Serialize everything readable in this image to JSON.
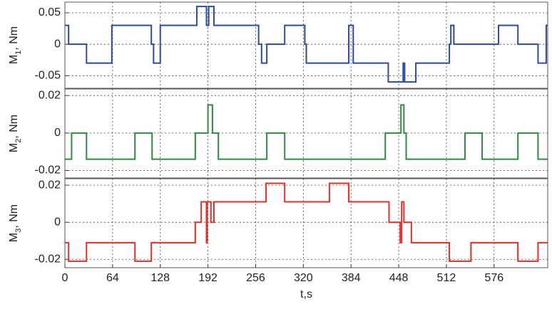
{
  "chart_data": [
    {
      "type": "line",
      "ylabel": [
        "M",
        "1",
        ", Nm"
      ],
      "color": "#2b4c9c",
      "x": [
        0,
        5,
        5,
        29,
        29,
        63,
        63,
        116,
        116,
        119,
        119,
        128,
        128,
        177,
        177,
        190,
        190,
        193,
        193,
        200,
        200,
        260,
        260,
        264,
        264,
        271,
        271,
        295,
        295,
        322,
        322,
        324,
        324,
        381,
        381,
        387,
        387,
        434,
        434,
        454,
        454,
        456,
        456,
        471,
        471,
        516,
        516,
        518,
        518,
        522,
        522,
        582,
        582,
        608,
        608,
        635,
        635,
        646,
        646,
        648
      ],
      "values": [
        0.03,
        0.03,
        0,
        0,
        -0.03,
        -0.03,
        0.03,
        0.03,
        0,
        0,
        -0.03,
        -0.03,
        0.03,
        0.03,
        0.06,
        0.06,
        0.03,
        0.03,
        0.06,
        0.06,
        0.03,
        0.03,
        0,
        0,
        -0.03,
        -0.03,
        0,
        0,
        0.03,
        0.03,
        0,
        0,
        -0.03,
        -0.03,
        0.03,
        0.03,
        -0.03,
        -0.03,
        -0.06,
        -0.06,
        -0.03,
        -0.03,
        -0.06,
        -0.06,
        -0.03,
        -0.03,
        0,
        0,
        0.03,
        0.03,
        0,
        0,
        0.03,
        0.03,
        0,
        0,
        -0.03,
        -0.03,
        0.03,
        0.03
      ],
      "xlim": [
        0,
        648
      ],
      "ylim": [
        -0.07,
        0.067
      ],
      "yticks": [
        0.05,
        0,
        -0.05
      ],
      "grid": true
    },
    {
      "type": "line",
      "ylabel": [
        "M",
        "2",
        ", Nm"
      ],
      "color": "#2e8b3e",
      "x": [
        0,
        9,
        9,
        29,
        29,
        94,
        94,
        117,
        117,
        175,
        175,
        192,
        192,
        198,
        198,
        206,
        206,
        271,
        271,
        295,
        295,
        430,
        430,
        451,
        451,
        455,
        455,
        458,
        458,
        537,
        537,
        560,
        560,
        608,
        608,
        635,
        635,
        648
      ],
      "values": [
        -0.014,
        -0.014,
        0,
        0,
        -0.014,
        -0.014,
        0,
        0,
        -0.014,
        -0.014,
        0,
        0,
        0.015,
        0.015,
        0,
        0,
        -0.014,
        -0.014,
        0,
        0,
        -0.014,
        -0.014,
        0,
        0,
        0.015,
        0.015,
        0,
        0,
        -0.014,
        -0.014,
        0,
        0,
        -0.014,
        -0.014,
        0,
        0,
        -0.014,
        -0.014
      ],
      "xlim": [
        0,
        648
      ],
      "ylim": [
        -0.024,
        0.0235
      ],
      "yticks": [
        0.02,
        0,
        -0.02
      ],
      "grid": true
    },
    {
      "type": "line",
      "ylabel": [
        "M",
        "3",
        ", Nm"
      ],
      "color": "#e0302a",
      "xlabel": "t,s",
      "x": [
        0,
        5,
        5,
        29,
        29,
        94,
        94,
        116,
        116,
        175,
        175,
        183,
        183,
        190,
        190,
        191,
        191,
        196,
        196,
        200,
        200,
        270,
        270,
        295,
        295,
        355,
        355,
        381,
        381,
        435,
        435,
        450,
        450,
        452,
        452,
        455,
        455,
        465,
        465,
        516,
        516,
        545,
        545,
        608,
        608,
        635,
        635,
        648
      ],
      "values": [
        -0.011,
        -0.011,
        -0.021,
        -0.021,
        -0.011,
        -0.011,
        -0.021,
        -0.021,
        -0.011,
        -0.011,
        0,
        0,
        0.011,
        0.011,
        -0.011,
        -0.011,
        0.011,
        0.011,
        0,
        0,
        0.011,
        0.011,
        0.021,
        0.021,
        0.011,
        0.011,
        0.021,
        0.021,
        0.011,
        0.011,
        0,
        0,
        -0.011,
        -0.011,
        0.011,
        0.011,
        0,
        0,
        -0.011,
        -0.011,
        -0.021,
        -0.021,
        -0.011,
        -0.011,
        -0.021,
        -0.021,
        -0.011,
        -0.011
      ],
      "xlim": [
        0,
        648
      ],
      "ylim": [
        -0.0245,
        0.0235
      ],
      "yticks": [
        0.02,
        0,
        -0.02
      ],
      "xticks": [
        0,
        64,
        128,
        192,
        256,
        320,
        384,
        448,
        512,
        576
      ],
      "grid": true
    }
  ]
}
